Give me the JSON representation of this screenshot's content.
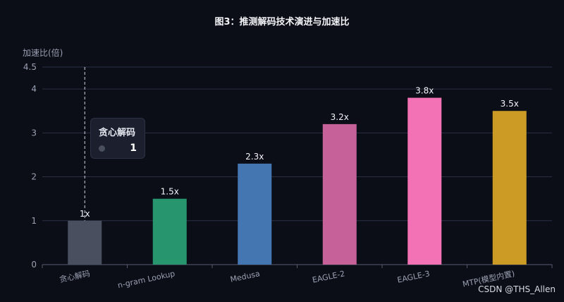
{
  "chart_data": {
    "type": "bar",
    "title": "图3：推测解码技术演进与加速比",
    "ylabel": "加速比(倍)",
    "xlabel": "",
    "ylim": [
      0,
      4.5
    ],
    "yticks": [
      0,
      1,
      2,
      3,
      4,
      4.5
    ],
    "categories": [
      "贪心解码",
      "n-gram Lookup",
      "Medusa",
      "EAGLE-2",
      "EAGLE-3",
      "MTP(模型内置)"
    ],
    "values": [
      1,
      1.5,
      2.3,
      3.2,
      3.8,
      3.5
    ],
    "data_labels": [
      "1x",
      "1.5x",
      "2.3x",
      "3.2x",
      "3.8x",
      "3.5x"
    ],
    "colors": [
      "#4a4f60",
      "#27956d",
      "#4476b2",
      "#c6619a",
      "#f272b5",
      "#cc9b26"
    ],
    "grid": true,
    "tooltip": {
      "title": "贪心解码",
      "value": "1"
    }
  },
  "watermark": "CSDN @THS_Allen"
}
